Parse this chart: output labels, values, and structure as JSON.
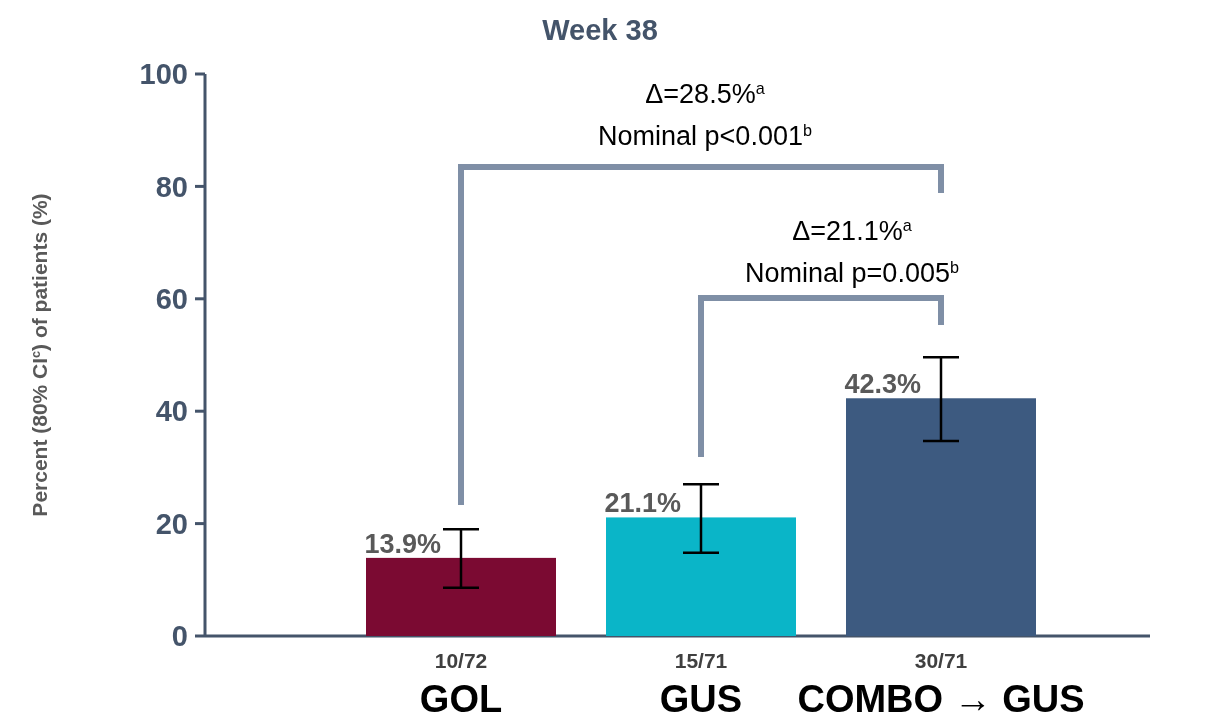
{
  "chart_data": {
    "type": "bar",
    "title": "Week 38",
    "ylabel": "Percent (80% CI$^{c}$) of patients (%)",
    "categories": [
      "10/72\nGOL",
      "15/71\nGUS",
      "30/71\nCOMBO → GUS"
    ],
    "values": [
      13.9,
      21.1,
      42.3
    ],
    "colors": [
      "#7b0a32",
      "#0ab5c8",
      "#3d5a80"
    ],
    "errors": [
      [
        8.6,
        19.0
      ],
      [
        14.8,
        27.0
      ],
      [
        34.7,
        49.6
      ]
    ],
    "value_labels": [
      "13.9%",
      "21.1%",
      "42.3%"
    ],
    "ylim": [
      0,
      100
    ],
    "yticks": [
      0,
      20,
      40,
      60,
      80,
      100
    ],
    "grid": false,
    "annotations": [
      "Δ=28.5%$^{a}$\nNominal p<0.001$^{b}$",
      "Δ=21.1%$^{a}$\nNominal p=0.005$^{b}$"
    ]
  }
}
